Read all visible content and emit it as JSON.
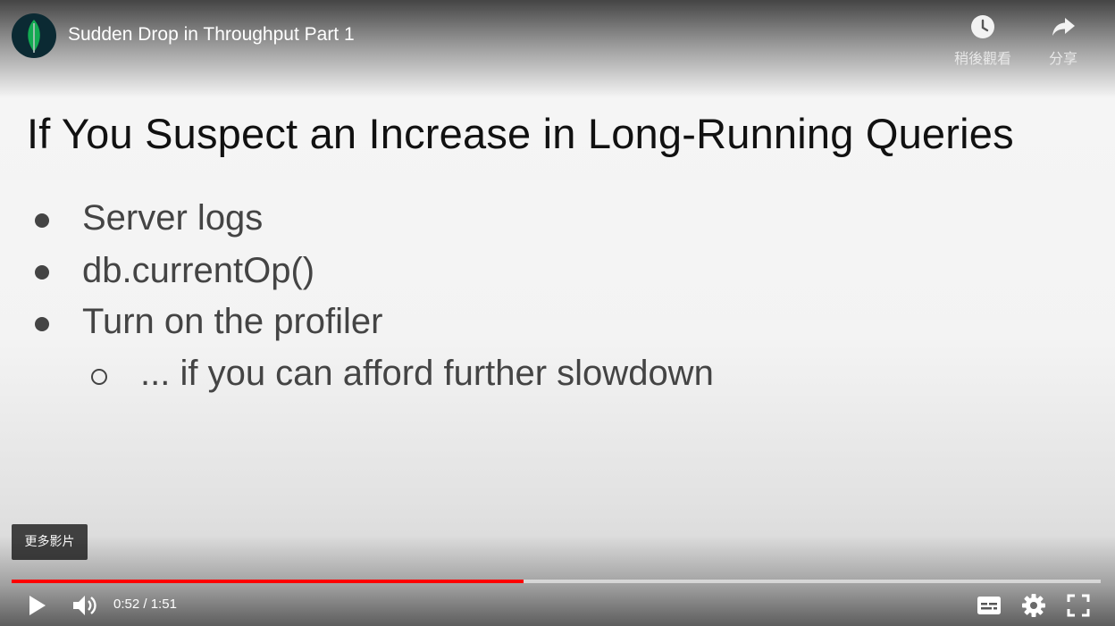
{
  "video": {
    "title": "Sudden Drop in Throughput Part 1",
    "channel_avatar_icon": "mongodb-leaf-icon"
  },
  "top_actions": {
    "watch_later": {
      "label": "稍後觀看",
      "icon": "clock-icon"
    },
    "share": {
      "label": "分享",
      "icon": "share-arrow-icon"
    }
  },
  "slide": {
    "title": "If You Suspect an Increase in Long-Running Queries",
    "bullets": [
      {
        "text": "Server logs"
      },
      {
        "text": "db.currentOp()"
      },
      {
        "text": "Turn on the profiler"
      }
    ],
    "sub_bullet": {
      "text": "... if you can afford further slowdown"
    }
  },
  "more_videos": {
    "label": "更多影片"
  },
  "controls": {
    "current_time": "0:52",
    "separator": " / ",
    "duration": "1:51",
    "progress_fraction": 0.47,
    "icons": {
      "play": "play-icon",
      "volume": "volume-icon",
      "subtitles": "subtitles-icon",
      "settings": "gear-icon",
      "fullscreen": "fullscreen-icon"
    }
  },
  "colors": {
    "progress": "#ff0000",
    "leaf": "#13aa52",
    "avatar_bg": "#0b2a33"
  }
}
